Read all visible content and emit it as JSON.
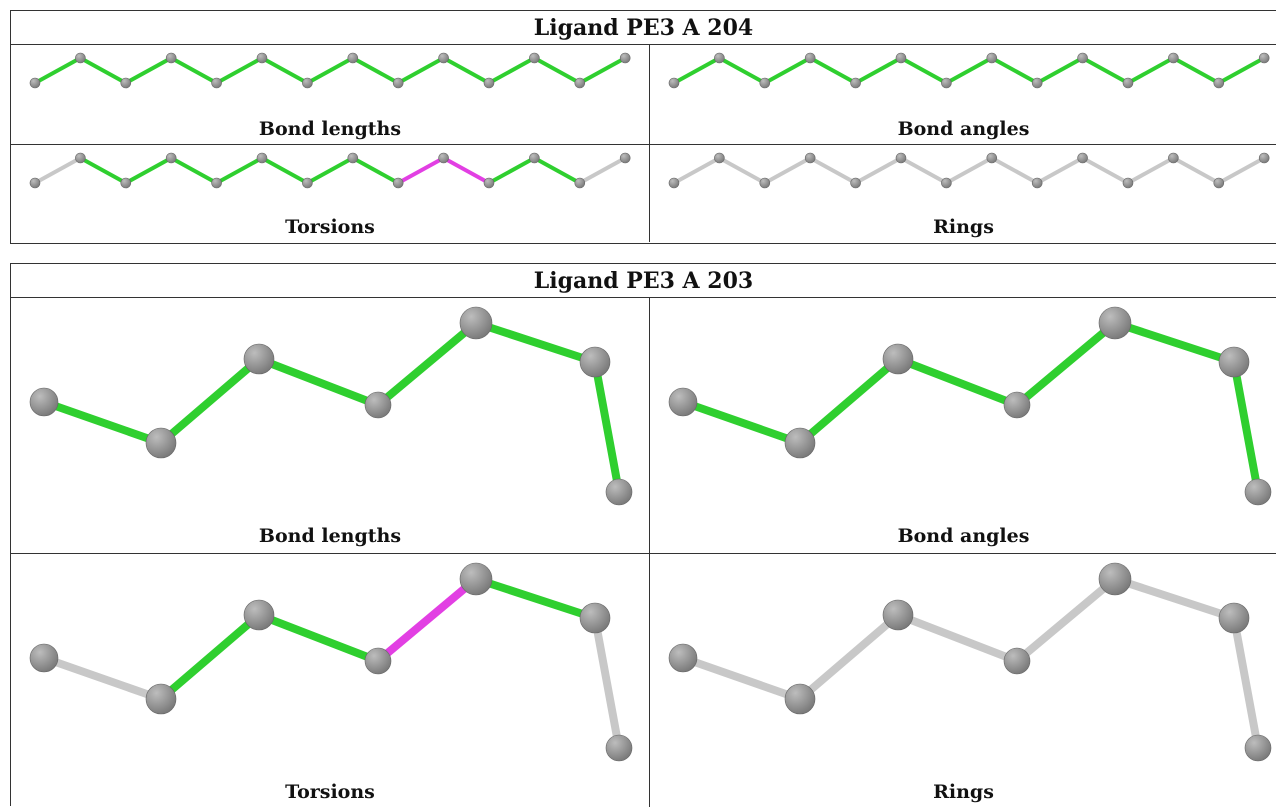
{
  "panels": [
    {
      "title": "Ligand PE3 A 204",
      "captions": [
        "Bond lengths",
        "Bond angles",
        "Torsions",
        "Rings"
      ],
      "bond_colors": [
        [
          "green",
          "green",
          "green",
          "green",
          "green",
          "green",
          "green",
          "green",
          "green",
          "green",
          "green",
          "green",
          "green"
        ],
        [
          "green",
          "green",
          "green",
          "green",
          "green",
          "green",
          "green",
          "green",
          "green",
          "green",
          "green",
          "green",
          "green"
        ],
        [
          "gray",
          "green",
          "green",
          "green",
          "green",
          "green",
          "green",
          "green",
          "magenta",
          "magenta",
          "green",
          "green",
          "gray"
        ],
        [
          "gray",
          "gray",
          "gray",
          "gray",
          "gray",
          "gray",
          "gray",
          "gray",
          "gray",
          "gray",
          "gray",
          "gray",
          "gray"
        ]
      ]
    },
    {
      "title": "Ligand PE3 A 203",
      "captions": [
        "Bond lengths",
        "Bond angles",
        "Torsions",
        "Rings"
      ],
      "bond_colors": [
        [
          "green",
          "green",
          "green",
          "green",
          "green",
          "green",
          "green"
        ],
        [
          "green",
          "green",
          "green",
          "green",
          "green",
          "green",
          "green"
        ],
        [
          "gray",
          "green",
          "green",
          "green",
          "magenta",
          "green",
          "gray"
        ],
        [
          "gray",
          "gray",
          "gray",
          "gray",
          "gray",
          "gray",
          "gray"
        ]
      ]
    }
  ],
  "colors": {
    "green": "#2fcf2f",
    "magenta": "#e23fe3",
    "gray": "#c8c8c8",
    "atom": "#777777",
    "atom_highlight": "#bdbdbd"
  }
}
